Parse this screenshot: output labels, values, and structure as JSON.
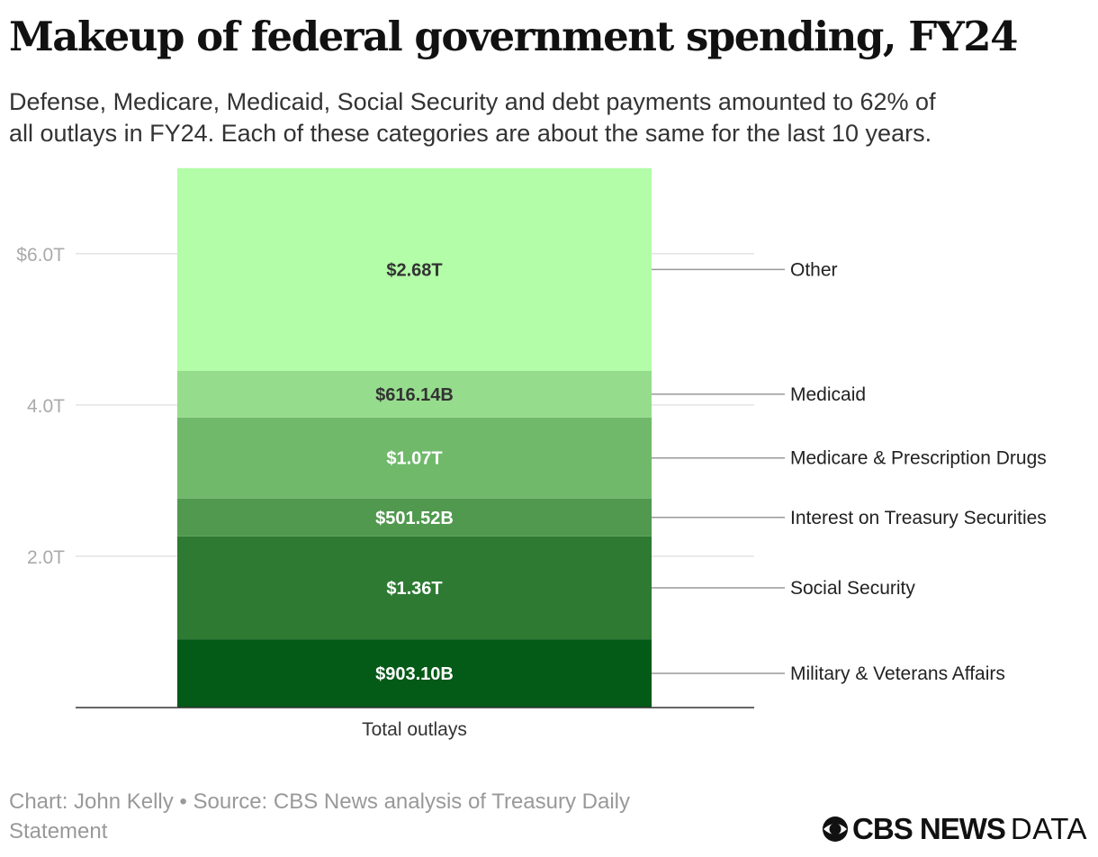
{
  "title": "Makeup of federal government spending, FY24",
  "subtitle_lines": [
    "Defense, Medicare, Medicaid, Social Security and debt payments amounted to 62% of",
    "all outlays in FY24. Each of these categories are about the same for the last 10 years."
  ],
  "footer_lines": [
    "Chart: John Kelly • Source: CBS News analysis of Treasury Daily",
    "Statement"
  ],
  "logo": {
    "brand": "CBS NEWS",
    "suffix": "DATA"
  },
  "chart_data": {
    "type": "bar",
    "stacked": true,
    "categories": [
      "Total outlays"
    ],
    "ylim": [
      0,
      7.14
    ],
    "y_ticks": [
      {
        "value": 2.0,
        "label": "2.0T"
      },
      {
        "value": 4.0,
        "label": "4.0T"
      },
      {
        "value": 6.0,
        "label": "$6.0T"
      }
    ],
    "grid": true,
    "legend": "direct labels on right",
    "series": [
      {
        "name": "Military & Veterans Affairs",
        "value": 0.9031,
        "label": "$903.10B",
        "color": "#045a17",
        "text_color": "#ffffff"
      },
      {
        "name": "Social Security",
        "value": 1.36,
        "label": "$1.36T",
        "color": "#2e7a33",
        "text_color": "#ffffff"
      },
      {
        "name": "Interest on Treasury Securities",
        "value": 0.50152,
        "label": "$501.52B",
        "color": "#51994f",
        "text_color": "#ffffff"
      },
      {
        "name": "Medicare & Prescription Drugs",
        "value": 1.07,
        "label": "$1.07T",
        "color": "#70b96b",
        "text_color": "#ffffff"
      },
      {
        "name": "Medicaid",
        "value": 0.61614,
        "label": "$616.14B",
        "color": "#96dc8d",
        "text_color": "#333333"
      },
      {
        "name": "Other",
        "value": 2.68,
        "label": "$2.68T",
        "color": "#b3fda8",
        "text_color": "#333333"
      }
    ]
  }
}
